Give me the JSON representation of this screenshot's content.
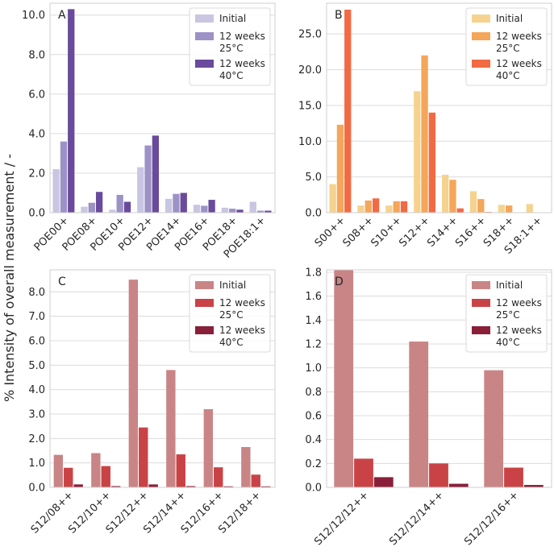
{
  "figure": {
    "ylabel": "% Intensity of overall measurement / -"
  },
  "chart_data": [
    {
      "type": "bar",
      "panel_label": "A",
      "categories": [
        "POE00+",
        "POE08+",
        "POE10+",
        "POE12+",
        "POE14+",
        "POE16+",
        "POE18+",
        "POE18:1+"
      ],
      "series": [
        {
          "name": "Initial",
          "color": "#c9c6e2",
          "values": [
            2.2,
            0.3,
            0.15,
            2.3,
            0.7,
            0.4,
            0.25,
            0.55
          ]
        },
        {
          "name": "12 weeks\n25°C",
          "color": "#9c92c6",
          "values": [
            3.6,
            0.5,
            0.9,
            3.4,
            0.95,
            0.35,
            0.2,
            0.1
          ]
        },
        {
          "name": "12 weeks\n40°C",
          "color": "#6a4a9c",
          "values": [
            10.3,
            1.05,
            0.55,
            3.9,
            1.0,
            0.65,
            0.15,
            0.1
          ]
        }
      ],
      "yticks": [
        "0.0",
        "2.0",
        "4.0",
        "6.0",
        "8.0",
        "10.0"
      ],
      "ylim": [
        0,
        10.6
      ],
      "grid": true,
      "legend": "top-right"
    },
    {
      "type": "bar",
      "panel_label": "B",
      "categories": [
        "S00++",
        "S08++",
        "S10++",
        "S12++",
        "S14++",
        "S16++",
        "S18++",
        "S18:1++"
      ],
      "series": [
        {
          "name": "Initial",
          "color": "#f5d38f",
          "values": [
            4.0,
            1.0,
            1.0,
            17.0,
            5.3,
            3.0,
            1.1,
            1.2
          ]
        },
        {
          "name": "12 weeks\n25°C",
          "color": "#f4a65a",
          "values": [
            12.3,
            1.7,
            1.6,
            22.0,
            4.6,
            1.9,
            1.0,
            0.0
          ]
        },
        {
          "name": "12 weeks\n40°C",
          "color": "#f26a43",
          "values": [
            28.4,
            2.0,
            1.6,
            14.0,
            0.6,
            0.1,
            0.0,
            0.0
          ]
        }
      ],
      "yticks": [
        "0.0",
        "5.0",
        "10.0",
        "15.0",
        "20.0",
        "25.0"
      ],
      "ylim": [
        0,
        29.3
      ],
      "grid": true,
      "legend": "top-right"
    },
    {
      "type": "bar",
      "panel_label": "C",
      "categories": [
        "S12/08++",
        "S12/10++",
        "S12/12++",
        "S12/14++",
        "S12/16++",
        "S12/18++"
      ],
      "series": [
        {
          "name": "Initial",
          "color": "#c98586",
          "values": [
            1.33,
            1.4,
            8.5,
            4.8,
            3.2,
            1.65
          ]
        },
        {
          "name": "12 weeks\n25°C",
          "color": "#c94346",
          "values": [
            0.8,
            0.87,
            2.45,
            1.35,
            0.82,
            0.52
          ]
        },
        {
          "name": "12 weeks\n40°C",
          "color": "#8a1f3a",
          "values": [
            0.12,
            0.05,
            0.12,
            0.05,
            0.04,
            0.04
          ]
        }
      ],
      "yticks": [
        "0.0",
        "1.0",
        "2.0",
        "3.0",
        "4.0",
        "5.0",
        "6.0",
        "7.0",
        "8.0"
      ],
      "ylim": [
        0,
        8.9
      ],
      "grid": true,
      "legend": "top-right"
    },
    {
      "type": "bar",
      "panel_label": "D",
      "categories": [
        "S12/12/12++",
        "S12/12/14++",
        "S12/12/16++"
      ],
      "series": [
        {
          "name": "Initial",
          "color": "#c98586",
          "values": [
            1.82,
            1.22,
            0.98
          ]
        },
        {
          "name": "12 weeks\n25°C",
          "color": "#c94346",
          "values": [
            0.24,
            0.2,
            0.165
          ]
        },
        {
          "name": "12 weeks\n40°C",
          "color": "#8a1f3a",
          "values": [
            0.085,
            0.03,
            0.02
          ]
        }
      ],
      "yticks": [
        "0.0",
        "0.2",
        "0.4",
        "0.6",
        "0.8",
        "1.0",
        "1.2",
        "1.4",
        "1.6",
        "1.8"
      ],
      "ylim": [
        0,
        1.82
      ],
      "grid": true,
      "legend": "top-right"
    }
  ]
}
